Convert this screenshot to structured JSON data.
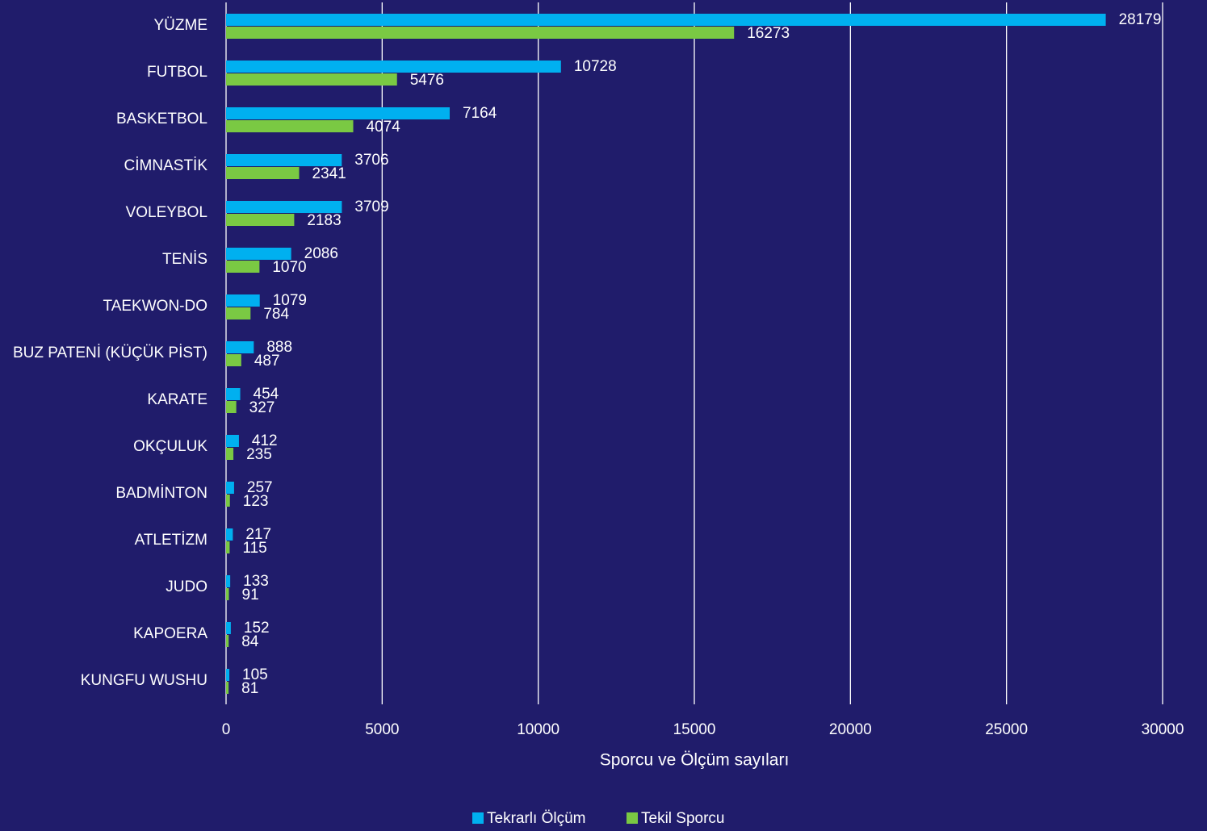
{
  "chart_data": {
    "type": "hbar",
    "categories": [
      "YÜZME",
      "FUTBOL",
      "BASKETBOL",
      "CİMNASTİK",
      "VOLEYBOL",
      "TENİS",
      "TAEKWON-DO",
      "BUZ PATENİ (KÜÇÜK PİST)",
      "KARATE",
      "OKÇULUK",
      "BADMİNTON",
      "ATLETİZM",
      "JUDO",
      "KAPOERA",
      "KUNGFU WUSHU"
    ],
    "series": [
      {
        "name": "Tekrarlı Ölçüm",
        "color": "#00b0f0",
        "values": [
          28179,
          10728,
          7164,
          3706,
          3709,
          2086,
          1079,
          888,
          454,
          412,
          257,
          217,
          133,
          152,
          105
        ]
      },
      {
        "name": "Tekil Sporcu",
        "color": "#7ac943",
        "values": [
          16273,
          5476,
          4074,
          2341,
          2183,
          1070,
          784,
          487,
          327,
          235,
          123,
          115,
          91,
          84,
          81
        ]
      }
    ],
    "xlabel": "Sporcu ve Ölçüm sayıları",
    "xlim": [
      0,
      30000
    ],
    "xticks": [
      0,
      5000,
      10000,
      15000,
      20000,
      25000,
      30000
    ],
    "grid": true,
    "legend": "bottom"
  }
}
